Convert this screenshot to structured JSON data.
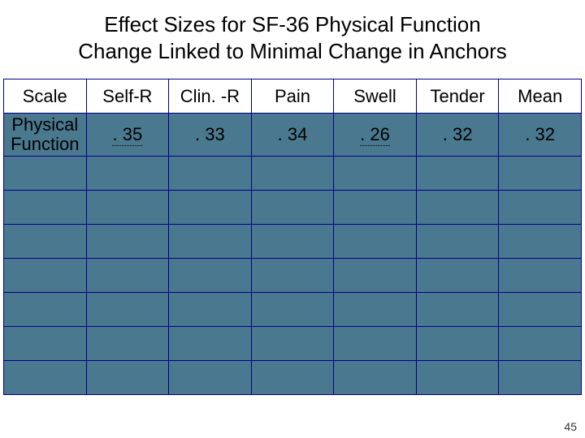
{
  "title_line1": "Effect Sizes for SF-36 Physical Function",
  "title_line2": "Change Linked to Minimal Change in Anchors",
  "table": {
    "columns": [
      "Scale",
      "Self-R",
      "Clin. -R",
      "Pain",
      "Swell",
      "Tender",
      "Mean"
    ],
    "col_font_variant": [
      "hdr-scale",
      "hdr-normal",
      "hdr-normal",
      "hdr-normal",
      "hdr-normal",
      "hdr-small",
      "hdr-normal"
    ],
    "row_label_line1": "Physical",
    "row_label_line2": "Function",
    "values": [
      ". 35",
      ". 33",
      ". 34",
      ". 26",
      ". 32",
      ". 32"
    ],
    "value_dotted": [
      true,
      false,
      false,
      true,
      false,
      false
    ],
    "empty_rows": 7,
    "header_bg": "#ffffff",
    "body_bg": "#4a788e",
    "border_color": "#00008b"
  },
  "page_number": "45"
}
